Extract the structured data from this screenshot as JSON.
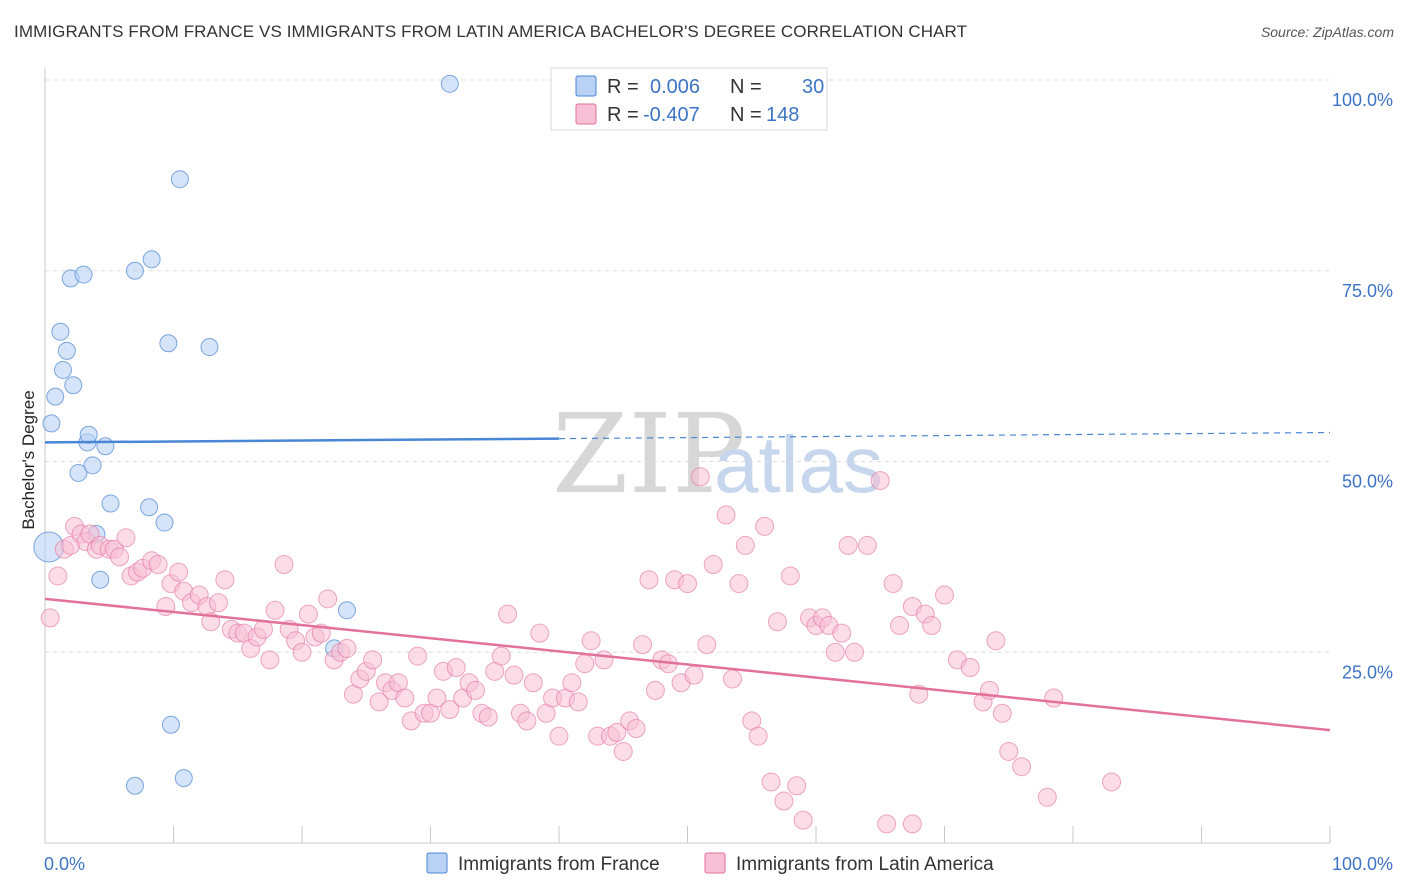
{
  "title": "IMMIGRANTS FROM FRANCE VS IMMIGRANTS FROM LATIN AMERICA BACHELOR'S DEGREE CORRELATION CHART",
  "source": "Source: ZipAtlas.com",
  "watermark": {
    "zip": "ZIP",
    "atlas": "atlas"
  },
  "colors": {
    "france": "#4a86d6",
    "france_fill": "#b9d2f4",
    "latin": "#e2729b",
    "latin_fill": "#f7c0d4",
    "tick_text": "#3d74c5",
    "grid": "#dddddd"
  },
  "legend": {
    "rows": [
      {
        "r_label": "R =",
        "r_value": "0.006",
        "n_label": "N =",
        "n_value": "30"
      },
      {
        "r_label": "R =",
        "r_value": "-0.407",
        "n_label": "N =",
        "n_value": "148"
      }
    ]
  },
  "chart_data": {
    "type": "scatter",
    "title": "IMMIGRANTS FROM FRANCE VS IMMIGRANTS FROM LATIN AMERICA BACHELOR'S DEGREE CORRELATION CHART",
    "xlabel": "",
    "ylabel": "Bachelor's Degree",
    "xlim": [
      0,
      100
    ],
    "ylim": [
      0,
      100
    ],
    "x_tick_labels": [
      "0.0%",
      "100.0%"
    ],
    "y_ticks": [
      25,
      50,
      75,
      100
    ],
    "y_tick_labels": [
      "25.0%",
      "50.0%",
      "75.0%",
      "100.0%"
    ],
    "series": [
      {
        "name": "Immigrants from France",
        "R": 0.006,
        "N": 30,
        "trend": {
          "x": [
            0,
            40
          ],
          "y": [
            52.5,
            53.0
          ],
          "x_dashed": [
            40,
            100
          ],
          "y_dashed": [
            53.0,
            53.8
          ]
        },
        "points": [
          {
            "x": 0.3,
            "y": 38.8,
            "s": 2
          },
          {
            "x": 0.5,
            "y": 55.0
          },
          {
            "x": 0.8,
            "y": 58.5
          },
          {
            "x": 1.2,
            "y": 67.0
          },
          {
            "x": 1.4,
            "y": 62.0
          },
          {
            "x": 1.7,
            "y": 64.5
          },
          {
            "x": 2.0,
            "y": 74.0
          },
          {
            "x": 2.2,
            "y": 60.0
          },
          {
            "x": 2.6,
            "y": 48.5
          },
          {
            "x": 3.0,
            "y": 74.5
          },
          {
            "x": 3.3,
            "y": 52.5
          },
          {
            "x": 3.4,
            "y": 53.5
          },
          {
            "x": 3.7,
            "y": 49.5
          },
          {
            "x": 4.0,
            "y": 40.5
          },
          {
            "x": 4.3,
            "y": 34.5
          },
          {
            "x": 4.7,
            "y": 52.0
          },
          {
            "x": 5.1,
            "y": 44.5
          },
          {
            "x": 7.0,
            "y": 75.0
          },
          {
            "x": 7.0,
            "y": 7.5
          },
          {
            "x": 8.1,
            "y": 44.0
          },
          {
            "x": 8.3,
            "y": 76.5
          },
          {
            "x": 9.3,
            "y": 42.0
          },
          {
            "x": 9.6,
            "y": 65.5
          },
          {
            "x": 9.8,
            "y": 15.5
          },
          {
            "x": 10.5,
            "y": 87.0
          },
          {
            "x": 10.8,
            "y": 8.5
          },
          {
            "x": 12.8,
            "y": 65.0
          },
          {
            "x": 22.5,
            "y": 25.5
          },
          {
            "x": 23.5,
            "y": 30.5
          },
          {
            "x": 31.5,
            "y": 99.5
          }
        ]
      },
      {
        "name": "Immigrants from Latin America",
        "R": -0.407,
        "N": 148,
        "trend": {
          "x": [
            0,
            100
          ],
          "y": [
            32.0,
            14.8
          ]
        },
        "points": [
          {
            "x": 0.4,
            "y": 29.5
          },
          {
            "x": 1.0,
            "y": 35.0
          },
          {
            "x": 1.5,
            "y": 38.5
          },
          {
            "x": 2.0,
            "y": 39.0
          },
          {
            "x": 2.3,
            "y": 41.5
          },
          {
            "x": 2.8,
            "y": 40.5
          },
          {
            "x": 3.2,
            "y": 39.5
          },
          {
            "x": 3.5,
            "y": 40.5
          },
          {
            "x": 4.0,
            "y": 38.5
          },
          {
            "x": 4.3,
            "y": 39.0
          },
          {
            "x": 5.0,
            "y": 38.5
          },
          {
            "x": 5.4,
            "y": 38.5
          },
          {
            "x": 5.8,
            "y": 37.5
          },
          {
            "x": 6.3,
            "y": 40.0
          },
          {
            "x": 6.7,
            "y": 35.0
          },
          {
            "x": 7.2,
            "y": 35.5
          },
          {
            "x": 7.6,
            "y": 36.0
          },
          {
            "x": 8.3,
            "y": 37.0
          },
          {
            "x": 8.8,
            "y": 36.5
          },
          {
            "x": 9.4,
            "y": 31.0
          },
          {
            "x": 9.8,
            "y": 34.0
          },
          {
            "x": 10.4,
            "y": 35.5
          },
          {
            "x": 10.8,
            "y": 33.0
          },
          {
            "x": 11.4,
            "y": 31.5
          },
          {
            "x": 12.0,
            "y": 32.5
          },
          {
            "x": 12.6,
            "y": 31.0
          },
          {
            "x": 12.9,
            "y": 29.0
          },
          {
            "x": 13.5,
            "y": 31.5
          },
          {
            "x": 14.0,
            "y": 34.5
          },
          {
            "x": 14.5,
            "y": 28.0
          },
          {
            "x": 15.0,
            "y": 27.5
          },
          {
            "x": 15.5,
            "y": 27.5
          },
          {
            "x": 16.0,
            "y": 25.5
          },
          {
            "x": 16.5,
            "y": 27.0
          },
          {
            "x": 17.0,
            "y": 28.0
          },
          {
            "x": 17.5,
            "y": 24.0
          },
          {
            "x": 17.9,
            "y": 30.5
          },
          {
            "x": 18.6,
            "y": 36.5
          },
          {
            "x": 19.0,
            "y": 28.0
          },
          {
            "x": 19.5,
            "y": 26.5
          },
          {
            "x": 20.0,
            "y": 25.0
          },
          {
            "x": 20.5,
            "y": 30.0
          },
          {
            "x": 21.0,
            "y": 27.0
          },
          {
            "x": 21.5,
            "y": 27.5
          },
          {
            "x": 22.0,
            "y": 32.0
          },
          {
            "x": 22.5,
            "y": 24.0
          },
          {
            "x": 23.0,
            "y": 25.0
          },
          {
            "x": 23.5,
            "y": 25.5
          },
          {
            "x": 24.0,
            "y": 19.5
          },
          {
            "x": 24.5,
            "y": 21.5
          },
          {
            "x": 25.0,
            "y": 22.5
          },
          {
            "x": 25.5,
            "y": 24.0
          },
          {
            "x": 26.0,
            "y": 18.5
          },
          {
            "x": 26.5,
            "y": 21.0
          },
          {
            "x": 27.0,
            "y": 20.0
          },
          {
            "x": 27.5,
            "y": 21.0
          },
          {
            "x": 28.0,
            "y": 19.0
          },
          {
            "x": 28.5,
            "y": 16.0
          },
          {
            "x": 29.0,
            "y": 24.5
          },
          {
            "x": 29.5,
            "y": 17.0
          },
          {
            "x": 30.0,
            "y": 17.0
          },
          {
            "x": 30.5,
            "y": 19.0
          },
          {
            "x": 31.0,
            "y": 22.5
          },
          {
            "x": 31.5,
            "y": 17.5
          },
          {
            "x": 32.0,
            "y": 23.0
          },
          {
            "x": 32.5,
            "y": 19.0
          },
          {
            "x": 33.0,
            "y": 21.0
          },
          {
            "x": 33.5,
            "y": 20.0
          },
          {
            "x": 34.0,
            "y": 17.0
          },
          {
            "x": 34.5,
            "y": 16.5
          },
          {
            "x": 35.0,
            "y": 22.5
          },
          {
            "x": 35.5,
            "y": 24.5
          },
          {
            "x": 36.0,
            "y": 30.0
          },
          {
            "x": 36.5,
            "y": 22.0
          },
          {
            "x": 37.0,
            "y": 17.0
          },
          {
            "x": 37.5,
            "y": 16.0
          },
          {
            "x": 38.0,
            "y": 21.0
          },
          {
            "x": 38.5,
            "y": 27.5
          },
          {
            "x": 39.0,
            "y": 17.0
          },
          {
            "x": 39.5,
            "y": 19.0
          },
          {
            "x": 40.0,
            "y": 14.0
          },
          {
            "x": 40.5,
            "y": 19.0
          },
          {
            "x": 41.0,
            "y": 21.0
          },
          {
            "x": 41.5,
            "y": 18.5
          },
          {
            "x": 42.0,
            "y": 23.5
          },
          {
            "x": 42.5,
            "y": 26.5
          },
          {
            "x": 43.0,
            "y": 14.0
          },
          {
            "x": 43.5,
            "y": 24.0
          },
          {
            "x": 44.0,
            "y": 14.0
          },
          {
            "x": 44.5,
            "y": 14.5
          },
          {
            "x": 45.0,
            "y": 12.0
          },
          {
            "x": 45.5,
            "y": 16.0
          },
          {
            "x": 46.0,
            "y": 15.0
          },
          {
            "x": 46.5,
            "y": 26.0
          },
          {
            "x": 47.0,
            "y": 34.5
          },
          {
            "x": 47.5,
            "y": 20.0
          },
          {
            "x": 48.0,
            "y": 24.0
          },
          {
            "x": 48.5,
            "y": 23.5
          },
          {
            "x": 49.0,
            "y": 34.5
          },
          {
            "x": 49.5,
            "y": 21.0
          },
          {
            "x": 50.0,
            "y": 34.0
          },
          {
            "x": 50.5,
            "y": 22.0
          },
          {
            "x": 51.0,
            "y": 48.0
          },
          {
            "x": 51.5,
            "y": 26.0
          },
          {
            "x": 52.0,
            "y": 36.5
          },
          {
            "x": 53.0,
            "y": 43.0
          },
          {
            "x": 53.5,
            "y": 21.5
          },
          {
            "x": 54.0,
            "y": 34.0
          },
          {
            "x": 54.5,
            "y": 39.0
          },
          {
            "x": 55.0,
            "y": 16.0
          },
          {
            "x": 55.5,
            "y": 14.0
          },
          {
            "x": 56.0,
            "y": 41.5
          },
          {
            "x": 56.5,
            "y": 8.0
          },
          {
            "x": 57.0,
            "y": 29.0
          },
          {
            "x": 57.5,
            "y": 5.5
          },
          {
            "x": 58.0,
            "y": 35.0
          },
          {
            "x": 58.5,
            "y": 7.5
          },
          {
            "x": 59.0,
            "y": 3.0
          },
          {
            "x": 59.5,
            "y": 29.5
          },
          {
            "x": 60.0,
            "y": 28.5
          },
          {
            "x": 60.5,
            "y": 29.5
          },
          {
            "x": 61.0,
            "y": 28.5
          },
          {
            "x": 61.5,
            "y": 25.0
          },
          {
            "x": 62.0,
            "y": 27.5
          },
          {
            "x": 62.5,
            "y": 39.0
          },
          {
            "x": 63.0,
            "y": 25.0
          },
          {
            "x": 64.0,
            "y": 39.0
          },
          {
            "x": 65.0,
            "y": 47.5
          },
          {
            "x": 66.0,
            "y": 34.0
          },
          {
            "x": 66.5,
            "y": 28.5
          },
          {
            "x": 67.5,
            "y": 31.0
          },
          {
            "x": 68.0,
            "y": 19.5
          },
          {
            "x": 68.5,
            "y": 30.0
          },
          {
            "x": 69.0,
            "y": 28.5
          },
          {
            "x": 70.0,
            "y": 32.5
          },
          {
            "x": 71.0,
            "y": 24.0
          },
          {
            "x": 72.0,
            "y": 23.0
          },
          {
            "x": 73.0,
            "y": 18.5
          },
          {
            "x": 73.5,
            "y": 20.0
          },
          {
            "x": 74.0,
            "y": 26.5
          },
          {
            "x": 74.5,
            "y": 17.0
          },
          {
            "x": 75.0,
            "y": 12.0
          },
          {
            "x": 76.0,
            "y": 10.0
          },
          {
            "x": 78.0,
            "y": 6.0
          },
          {
            "x": 78.5,
            "y": 19.0
          },
          {
            "x": 83.0,
            "y": 8.0
          },
          {
            "x": 65.5,
            "y": 2.5
          },
          {
            "x": 67.5,
            "y": 2.5
          }
        ]
      }
    ]
  },
  "bottom_legend": {
    "france_label": "Immigrants from France",
    "latin_label": "Immigrants from Latin America"
  }
}
